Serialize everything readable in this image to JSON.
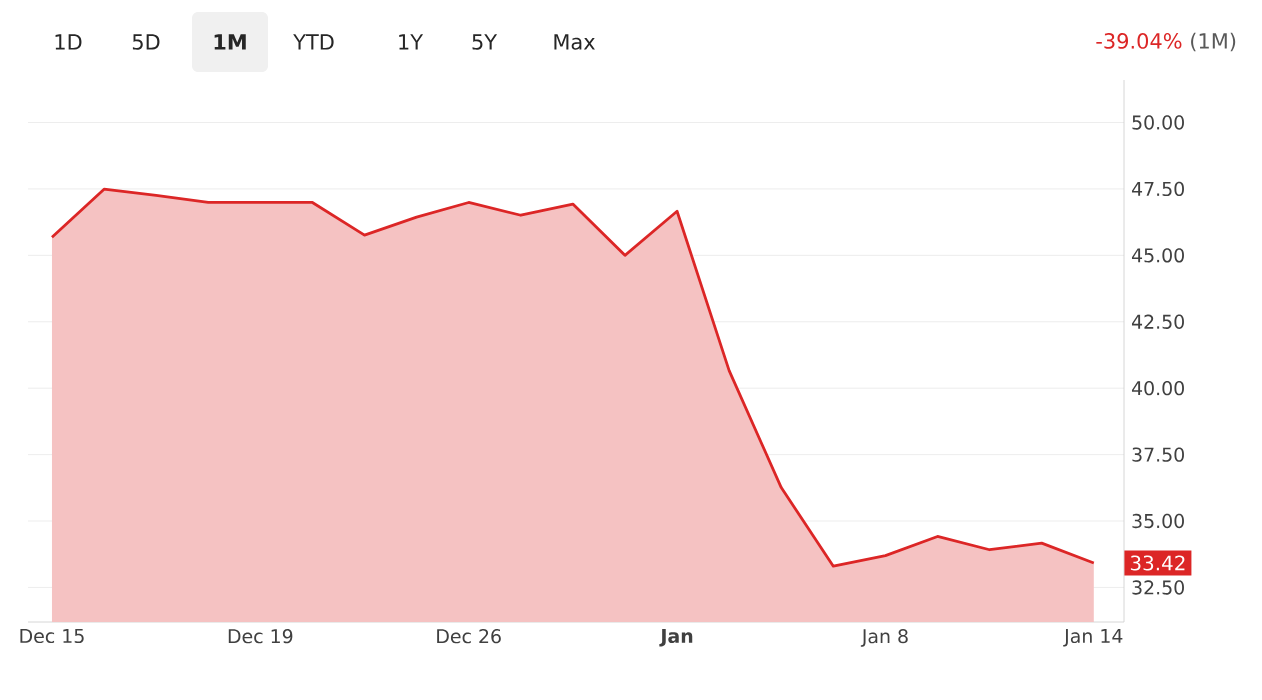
{
  "chart_data": {
    "type": "area",
    "categories": [
      "Dec 15",
      null,
      null,
      null,
      "Dec 19",
      null,
      null,
      null,
      "Dec 26",
      null,
      null,
      null,
      "**Jan**",
      null,
      null,
      null,
      "Jan 8",
      null,
      null,
      null,
      "Jan 14"
    ],
    "series": [
      {
        "color": "#dc2626",
        "values": [
          45.68,
          47.49,
          47.26,
          46.99,
          46.99,
          46.99,
          45.76,
          46.44,
          46.99,
          46.51,
          46.93,
          45.0,
          46.66,
          40.66,
          36.26,
          33.3,
          33.7,
          34.42,
          33.92,
          34.17,
          33.42
        ]
      }
    ],
    "ylim": [
      31.2,
      51.6
    ],
    "yticks": [
      {
        "value": 32.5,
        "label": "32.50"
      },
      {
        "value": 35,
        "label": "35.00"
      },
      {
        "value": 37.5,
        "label": "37.50"
      },
      {
        "value": 40,
        "label": "40.00"
      },
      {
        "value": 42.5,
        "label": "42.50"
      },
      {
        "value": 45,
        "label": "45.00"
      },
      {
        "value": 47.5,
        "label": "47.50"
      },
      {
        "value": 50,
        "label": "50.00"
      }
    ],
    "grid": "y",
    "annotations": [
      "1D",
      "5D",
      "**1M**",
      "YTD",
      "1Y",
      "5Y",
      "Max",
      "-39.04%",
      "(1M)",
      {
        "text": "33.42",
        "x": "Jan 14",
        "y": 33.42
      }
    ]
  }
}
